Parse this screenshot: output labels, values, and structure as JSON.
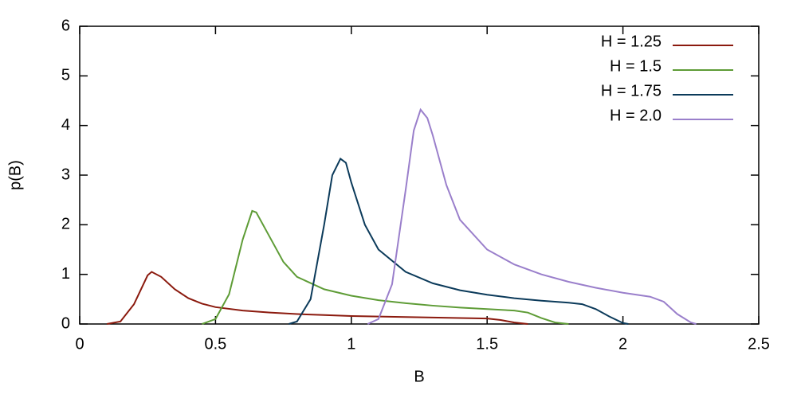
{
  "chart_data": {
    "type": "line",
    "xlabel": "B",
    "ylabel": "p(B)",
    "xlim": [
      0,
      2.5
    ],
    "ylim": [
      0,
      6
    ],
    "xticks": [
      0,
      0.5,
      1,
      1.5,
      2,
      2.5
    ],
    "yticks": [
      0,
      1,
      2,
      3,
      4,
      5,
      6
    ],
    "legend": "top-right",
    "series": [
      {
        "name": "H = 1.25",
        "color": "#8b1a0e",
        "x": [
          0.1,
          0.15,
          0.2,
          0.25,
          0.265,
          0.3,
          0.35,
          0.4,
          0.45,
          0.5,
          0.6,
          0.7,
          0.8,
          0.9,
          1.0,
          1.1,
          1.2,
          1.3,
          1.4,
          1.5,
          1.55,
          1.6,
          1.65
        ],
        "values": [
          0,
          0.05,
          0.4,
          0.98,
          1.05,
          0.95,
          0.7,
          0.52,
          0.41,
          0.34,
          0.27,
          0.23,
          0.2,
          0.18,
          0.16,
          0.15,
          0.14,
          0.13,
          0.12,
          0.11,
          0.08,
          0.03,
          0
        ]
      },
      {
        "name": "H = 1.5",
        "color": "#5e9c36",
        "x": [
          0.45,
          0.5,
          0.55,
          0.6,
          0.635,
          0.65,
          0.7,
          0.75,
          0.8,
          0.9,
          1.0,
          1.1,
          1.2,
          1.3,
          1.4,
          1.5,
          1.6,
          1.65,
          1.7,
          1.75,
          1.8
        ],
        "values": [
          0,
          0.1,
          0.6,
          1.7,
          2.28,
          2.25,
          1.75,
          1.25,
          0.95,
          0.7,
          0.57,
          0.48,
          0.42,
          0.37,
          0.33,
          0.3,
          0.27,
          0.23,
          0.12,
          0.03,
          0
        ]
      },
      {
        "name": "H = 1.75",
        "color": "#0b3a5a",
        "x": [
          0.77,
          0.8,
          0.85,
          0.9,
          0.93,
          0.96,
          0.98,
          1.0,
          1.05,
          1.1,
          1.2,
          1.3,
          1.4,
          1.5,
          1.6,
          1.7,
          1.8,
          1.85,
          1.9,
          1.95,
          2.0,
          2.02
        ],
        "values": [
          0,
          0.05,
          0.5,
          2.0,
          3.0,
          3.33,
          3.25,
          2.85,
          2.0,
          1.5,
          1.05,
          0.82,
          0.68,
          0.59,
          0.52,
          0.47,
          0.43,
          0.4,
          0.3,
          0.15,
          0.02,
          0
        ]
      },
      {
        "name": "H = 2.0",
        "color": "#9a7fcb",
        "x": [
          1.06,
          1.1,
          1.15,
          1.2,
          1.23,
          1.255,
          1.28,
          1.3,
          1.35,
          1.4,
          1.5,
          1.6,
          1.7,
          1.8,
          1.9,
          2.0,
          2.1,
          2.15,
          2.2,
          2.25,
          2.27
        ],
        "values": [
          0,
          0.1,
          0.8,
          2.7,
          3.9,
          4.32,
          4.15,
          3.8,
          2.8,
          2.1,
          1.5,
          1.2,
          1.0,
          0.85,
          0.73,
          0.63,
          0.55,
          0.45,
          0.2,
          0.03,
          0
        ]
      }
    ]
  }
}
